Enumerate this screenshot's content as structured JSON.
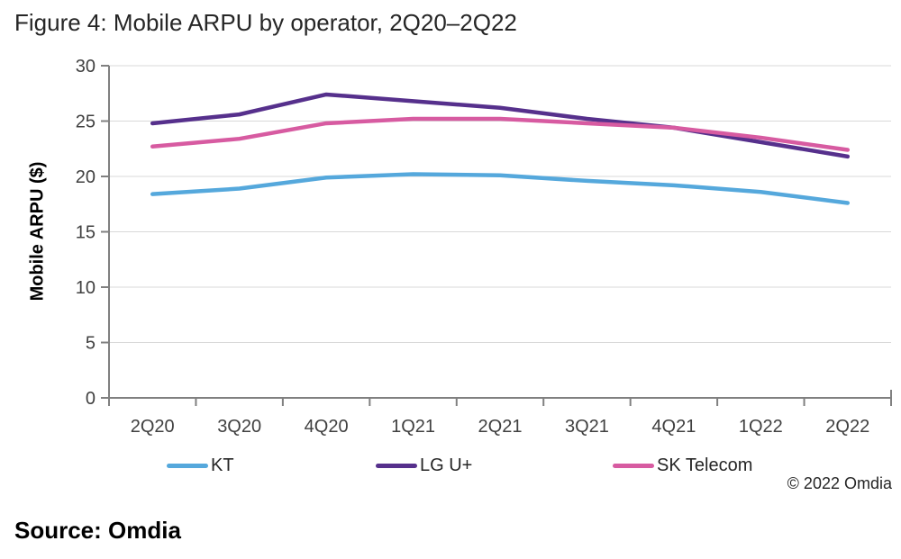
{
  "figure": {
    "title": "Figure 4: Mobile ARPU by operator, 2Q20–2Q22",
    "source_label": "Source: Omdia",
    "copyright": "© 2022 Omdia"
  },
  "chart_data": {
    "type": "line",
    "title": "Figure 4: Mobile ARPU by operator, 2Q20–2Q22",
    "xlabel": "",
    "ylabel": "Mobile ARPU ($)",
    "ylim": [
      0,
      30
    ],
    "y_ticks": [
      0,
      5,
      10,
      15,
      20,
      25,
      30
    ],
    "grid": true,
    "legend_position": "bottom",
    "categories": [
      "2Q20",
      "3Q20",
      "4Q20",
      "1Q21",
      "2Q21",
      "3Q21",
      "4Q21",
      "1Q22",
      "2Q22"
    ],
    "series": [
      {
        "name": "KT",
        "color": "#55A8DC",
        "values": [
          18.4,
          18.9,
          19.9,
          20.2,
          20.1,
          19.6,
          19.2,
          18.6,
          17.6
        ]
      },
      {
        "name": "LG U+",
        "color": "#56308C",
        "values": [
          24.8,
          25.6,
          27.4,
          26.8,
          26.2,
          25.2,
          24.4,
          23.1,
          21.8
        ]
      },
      {
        "name": "SK Telecom",
        "color": "#D75BA1",
        "values": [
          22.7,
          23.4,
          24.8,
          25.2,
          25.2,
          24.8,
          24.4,
          23.5,
          22.4
        ]
      }
    ]
  },
  "colors": {
    "gridline": "#D9D9D9",
    "axis": "#808080",
    "tick_label": "#404040"
  }
}
